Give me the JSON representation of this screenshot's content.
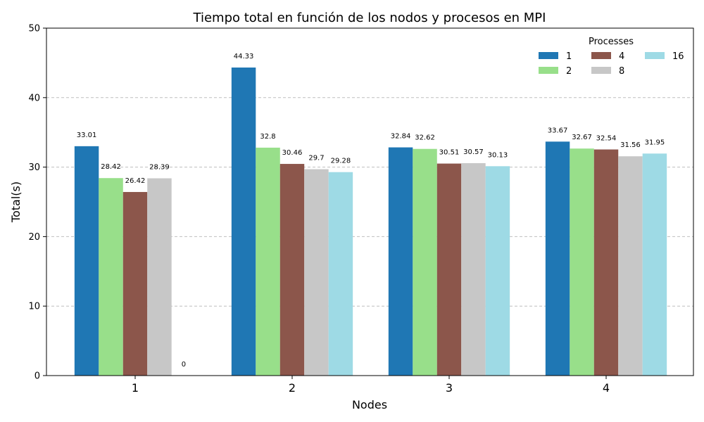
{
  "chart_data": {
    "type": "bar",
    "title": "Tiempo total en función de los nodos y procesos en MPI",
    "xlabel": "Nodes",
    "ylabel": "Total(s)",
    "categories": [
      "1",
      "2",
      "3",
      "4"
    ],
    "ylim": [
      0,
      50
    ],
    "yticks": [
      "0",
      "10",
      "20",
      "30",
      "40",
      "50"
    ],
    "grid": "y-dashed",
    "legend": {
      "title": "Processes",
      "placement": "top-right"
    },
    "series": [
      {
        "name": "1",
        "color": "#1f77b4",
        "values": [
          33.01,
          44.33,
          32.84,
          33.67
        ],
        "labels": [
          "33.01",
          "44.33",
          "32.84",
          "33.67"
        ]
      },
      {
        "name": "2",
        "color": "#98df8a",
        "values": [
          28.42,
          32.8,
          32.62,
          32.67
        ],
        "labels": [
          "28.42",
          "32.8",
          "32.62",
          "32.67"
        ]
      },
      {
        "name": "4",
        "color": "#8c564b",
        "values": [
          26.42,
          30.46,
          30.51,
          32.54
        ],
        "labels": [
          "26.42",
          "30.46",
          "30.51",
          "32.54"
        ]
      },
      {
        "name": "8",
        "color": "#c7c7c7",
        "values": [
          28.39,
          29.7,
          30.57,
          31.56
        ],
        "labels": [
          "28.39",
          "29.7",
          "30.57",
          "31.56"
        ]
      },
      {
        "name": "16",
        "color": "#9edae5",
        "values": [
          0,
          29.28,
          30.13,
          31.95
        ],
        "labels": [
          "0",
          "29.28",
          "30.13",
          "31.95"
        ]
      }
    ]
  }
}
